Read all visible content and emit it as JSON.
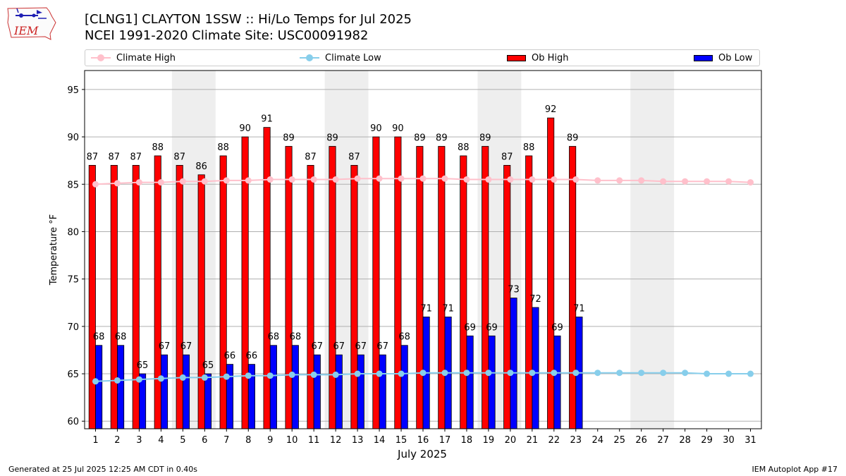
{
  "header": {
    "title_line1": "[CLNG1] CLAYTON 1SSW :: Hi/Lo Temps for Jul 2025",
    "title_line2": "NCEI 1991-2020 Climate Site: USC00091982",
    "logo_text": "IEM"
  },
  "legend": [
    {
      "label": "Climate High",
      "kind": "line",
      "color": "#ffc0cb"
    },
    {
      "label": "Climate Low",
      "kind": "line",
      "color": "#87ceeb"
    },
    {
      "label": "Ob High",
      "kind": "bar",
      "color": "#ff0000"
    },
    {
      "label": "Ob Low",
      "kind": "bar",
      "color": "#0000ff"
    }
  ],
  "footer": {
    "left": "Generated at 25 Jul 2025 12:25 AM CDT in 0.40s",
    "right": "IEM Autoplot App #17"
  },
  "chart_data": {
    "type": "bar",
    "xlabel": "July 2025",
    "ylabel": "Temperature °F",
    "ylim": [
      59.2,
      97
    ],
    "yticks": [
      60,
      65,
      70,
      75,
      80,
      85,
      90,
      95
    ],
    "grid": "horizontal",
    "legend_position": "top",
    "days": [
      1,
      2,
      3,
      4,
      5,
      6,
      7,
      8,
      9,
      10,
      11,
      12,
      13,
      14,
      15,
      16,
      17,
      18,
      19,
      20,
      21,
      22,
      23,
      24,
      25,
      26,
      27,
      28,
      29,
      30,
      31
    ],
    "weekend_shading_days": [
      5,
      6,
      12,
      13,
      19,
      20,
      26,
      27
    ],
    "series": [
      {
        "name": "Ob High",
        "color": "#ff0000",
        "values": [
          87,
          87,
          87,
          88,
          87,
          86,
          88,
          90,
          91,
          89,
          87,
          89,
          87,
          90,
          90,
          89,
          89,
          88,
          89,
          87,
          88,
          92,
          89
        ]
      },
      {
        "name": "Ob Low",
        "color": "#0000ff",
        "values": [
          68,
          68,
          65,
          67,
          67,
          65,
          66,
          66,
          68,
          68,
          67,
          67,
          67,
          67,
          68,
          71,
          71,
          69,
          69,
          73,
          72,
          69,
          71
        ]
      },
      {
        "name": "Climate High",
        "color": "#ffc0cb",
        "values": [
          85.0,
          85.1,
          85.2,
          85.2,
          85.3,
          85.3,
          85.4,
          85.4,
          85.5,
          85.5,
          85.5,
          85.5,
          85.6,
          85.6,
          85.6,
          85.6,
          85.6,
          85.5,
          85.5,
          85.5,
          85.5,
          85.5,
          85.5,
          85.4,
          85.4,
          85.4,
          85.3,
          85.3,
          85.3,
          85.3,
          85.2
        ]
      },
      {
        "name": "Climate Low",
        "color": "#87ceeb",
        "values": [
          64.2,
          64.3,
          64.4,
          64.5,
          64.6,
          64.6,
          64.7,
          64.8,
          64.8,
          64.9,
          64.9,
          64.9,
          65.0,
          65.0,
          65.0,
          65.1,
          65.1,
          65.1,
          65.1,
          65.1,
          65.1,
          65.1,
          65.1,
          65.1,
          65.1,
          65.1,
          65.1,
          65.1,
          65.0,
          65.0,
          65.0
        ]
      }
    ]
  }
}
